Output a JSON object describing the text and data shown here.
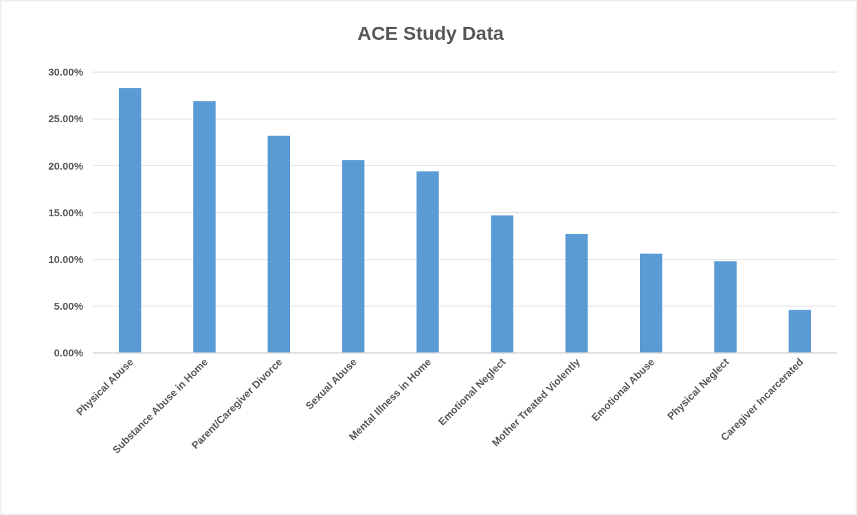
{
  "chart_data": {
    "type": "bar",
    "title": "ACE Study Data",
    "categories": [
      "Physical Abuse",
      "Substance Abuse in Home",
      "Parent/Caregiver Divorce",
      "Sexual Abuse",
      "Mental Illness in Home",
      "Emotional Neglect",
      "Mother Treated Violently",
      "Emotional Abuse",
      "Physical Neglect",
      "Caregiver Incarcerated"
    ],
    "values": [
      28.3,
      26.9,
      23.2,
      20.6,
      19.4,
      14.7,
      12.7,
      10.6,
      9.8,
      4.6
    ],
    "color": "#5b9bd5",
    "ylim": [
      0,
      30
    ],
    "yticks": [
      {
        "value": 0,
        "label": "0.00%"
      },
      {
        "value": 5,
        "label": "5.00%"
      },
      {
        "value": 10,
        "label": "10.00%"
      },
      {
        "value": 15,
        "label": "15.00%"
      },
      {
        "value": 20,
        "label": "20.00%"
      },
      {
        "value": 25,
        "label": "25.00%"
      },
      {
        "value": 30,
        "label": "30.00%"
      }
    ],
    "grid": "y"
  }
}
